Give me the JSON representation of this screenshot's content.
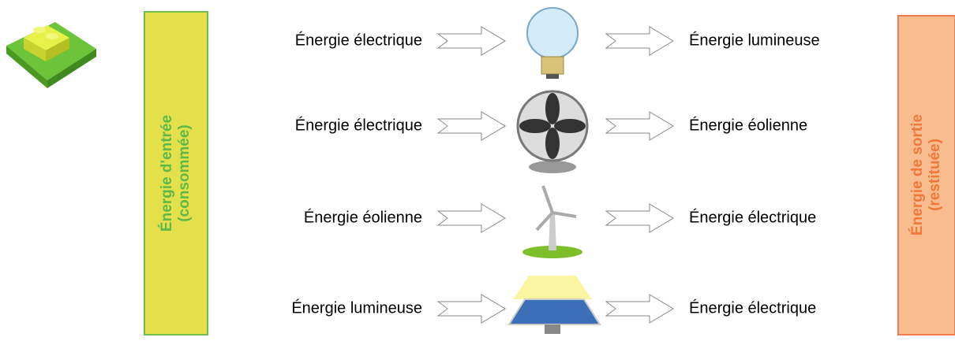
{
  "input_label": {
    "line1": "Énergie d'entrée",
    "line2": "(consommée)"
  },
  "output_label": {
    "line1": "Énergie de sortie",
    "line2": "(restituée)"
  },
  "rows": [
    {
      "input": "Énergie électrique",
      "output": "Énergie lumineuse"
    },
    {
      "input": "Énergie électrique",
      "output": "Énergie éolienne"
    },
    {
      "input": "Énergie éolienne",
      "output": "Énergie électrique"
    },
    {
      "input": "Énergie lumineuse",
      "output": "Énergie électrique"
    }
  ]
}
